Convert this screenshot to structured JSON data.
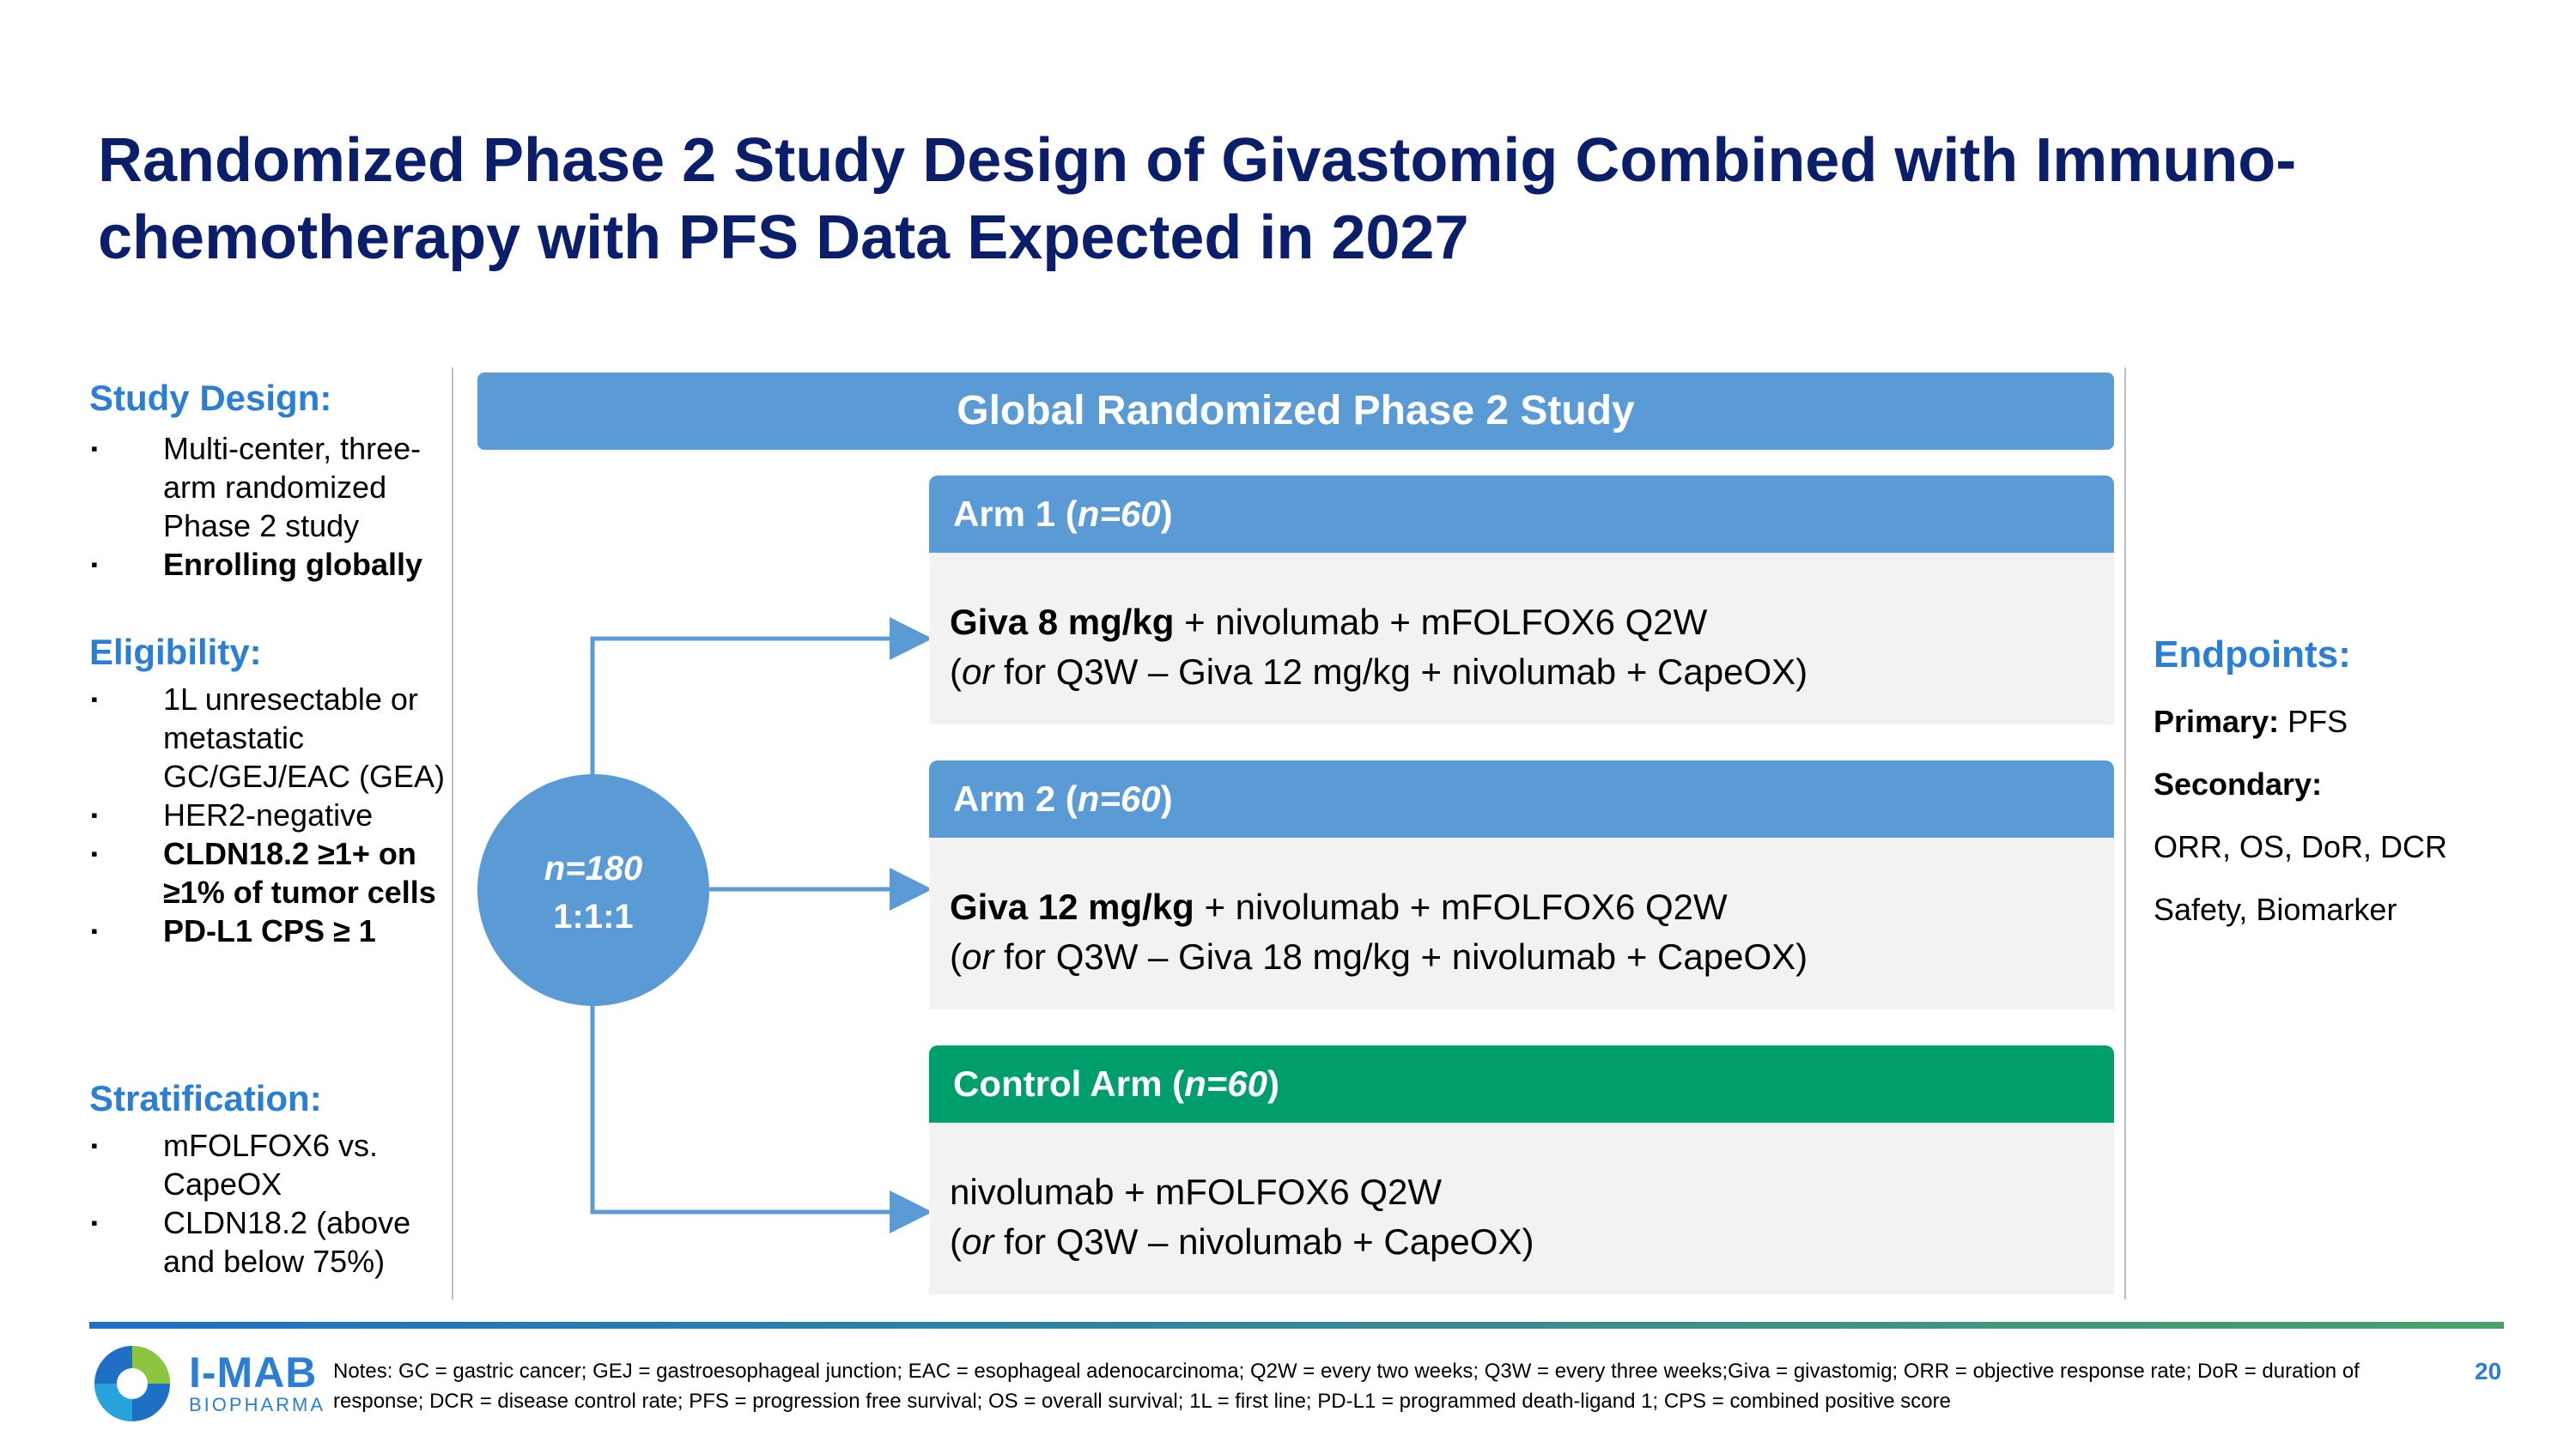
{
  "title": "Randomized Phase 2 Study Design of Givastomig Combined with Immuno-chemotherapy with PFS Data Expected in 2027",
  "left": {
    "study_design": {
      "heading": "Study Design:",
      "items": [
        "Multi-center, three-arm randomized Phase 2 study",
        "Enrolling globally"
      ]
    },
    "eligibility": {
      "heading": "Eligibility:",
      "items": [
        "1L unresectable or metastatic GC/GEJ/EAC (GEA)",
        "HER2-negative",
        "CLDN18.2 ≥1+ on ≥1% of tumor cells",
        "PD-L1 CPS ≥ 1"
      ]
    },
    "stratification": {
      "heading": "Stratification:",
      "items": [
        "mFOLFOX6 vs. CapeOX",
        "CLDN18.2 (above and below 75%)"
      ]
    },
    "bullet_glyph": "▪"
  },
  "study_banner": "Global Randomized Phase 2 Study",
  "randomization": {
    "n": "n=180",
    "ratio": "1:1:1"
  },
  "arms": [
    {
      "name": "Arm 1",
      "n": "n=60",
      "dose_bold": "Giva 8 mg/kg",
      "regimen": " + nivolumab + mFOLFOX6 Q2W",
      "alt_or": "or",
      "alt_rest": " for Q3W – Giva 12 mg/kg + nivolumab + CapeOX)",
      "color": "#5b9bd5"
    },
    {
      "name": "Arm 2",
      "n": "n=60",
      "dose_bold": "Giva 12 mg/kg",
      "regimen": " + nivolumab + mFOLFOX6 Q2W",
      "alt_or": "or",
      "alt_rest": " for Q3W – Giva 18 mg/kg + nivolumab + CapeOX)",
      "color": "#5b9bd5"
    },
    {
      "name": "Control Arm",
      "n": "n=60",
      "dose_bold": "",
      "regimen": "nivolumab + mFOLFOX6 Q2W",
      "alt_or": "or",
      "alt_rest": " for Q3W – nivolumab + CapeOX)",
      "color": "#009e6b"
    }
  ],
  "endpoints": {
    "heading": "Endpoints:",
    "primary_label": "Primary:",
    "primary_value": " PFS",
    "secondary_label": "Secondary:",
    "secondary_items": [
      "ORR, OS, DoR, DCR",
      "Safety, Biomarker"
    ]
  },
  "footer": {
    "brand": "I-MAB",
    "brand_sub": "BIOPHARMA",
    "notes": "Notes: GC = gastric cancer; GEJ = gastroesophageal junction; EAC = esophageal adenocarcinoma; Q2W = every two weeks; Q3W = every three weeks;Giva = givastomig; ORR = objective response rate; DoR = duration of response; DCR = disease control rate; PFS = progression free survival; OS = overall survival; 1L = first line; PD-L1 = programmed death-ligand 1; CPS = combined positive score",
    "page_number": "20"
  }
}
